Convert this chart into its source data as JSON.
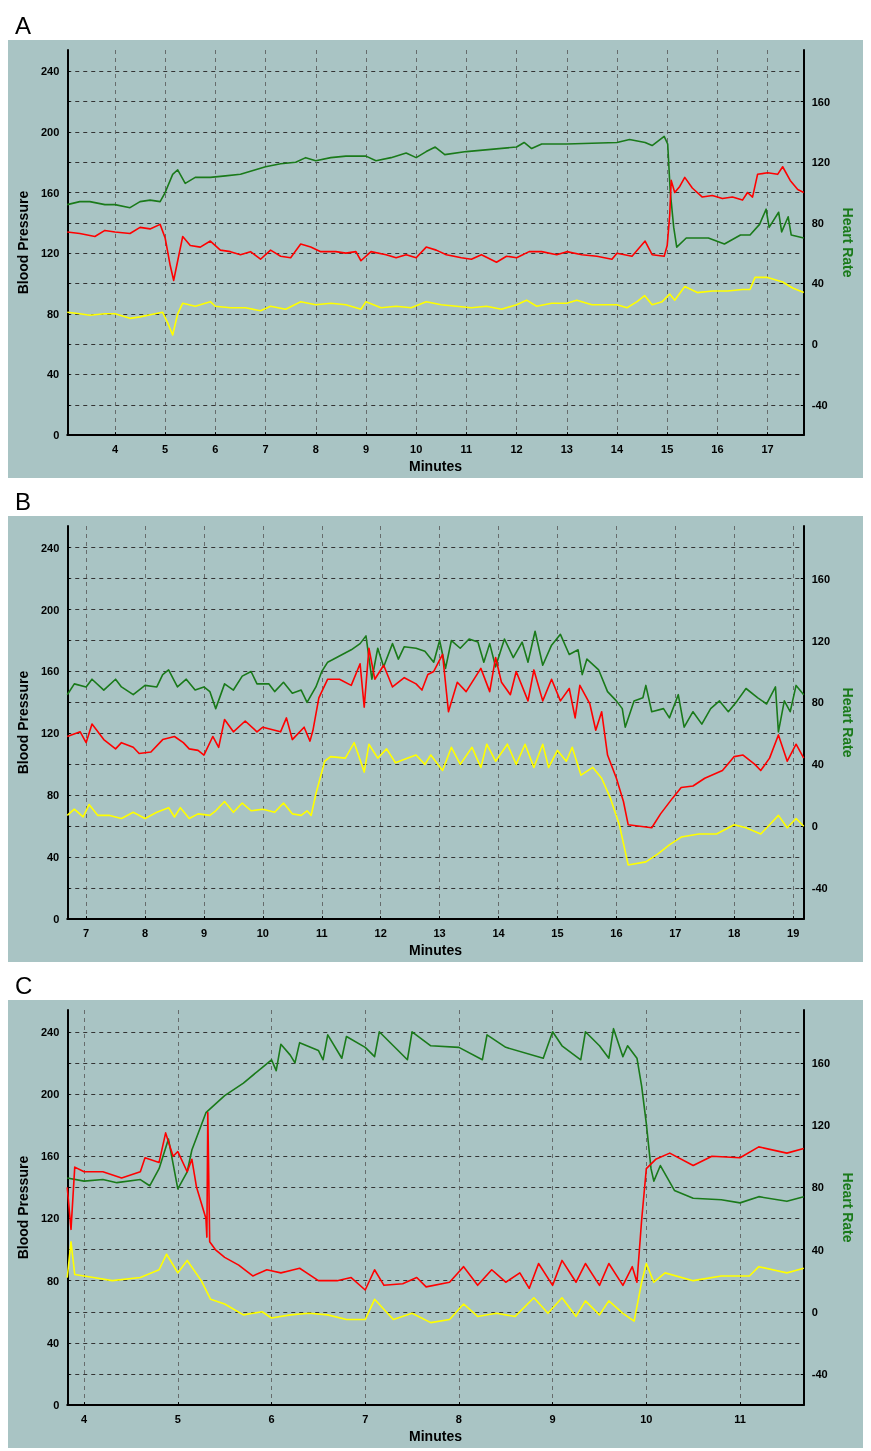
{
  "chart_data": [
    {
      "type": "line",
      "title": "A",
      "xlabel": "Minutes",
      "ylabel": "Blood Pressure",
      "y2label": "Heart Rate",
      "xlim": [
        3.05,
        17.72
      ],
      "xticks": [
        4,
        5,
        6,
        7,
        8,
        9,
        10,
        11,
        12,
        13,
        14,
        15,
        16,
        17
      ],
      "ylim": [
        0,
        254
      ],
      "yticks": [
        0,
        {
          "value": 20,
          "label": null
        },
        40,
        {
          "value": 60,
          "label": null
        },
        80,
        {
          "value": 100,
          "label": null
        },
        120,
        {
          "value": 140,
          "label": null
        },
        160,
        {
          "value": 180,
          "label": null
        },
        200,
        {
          "value": 220,
          "label": null
        },
        240
      ],
      "y2lim": [
        -60,
        194
      ],
      "y2ticks": [
        -40,
        0,
        40,
        80,
        120,
        160
      ],
      "grid": true,
      "series": [
        {
          "color": "#1a7a1a",
          "axis": "y2",
          "x": [
            3.05,
            3.3,
            3.5,
            3.8,
            4.0,
            4.3,
            4.5,
            4.7,
            4.9,
            5.0,
            5.15,
            5.25,
            5.4,
            5.6,
            5.9,
            6.2,
            6.5,
            6.8,
            7.0,
            7.3,
            7.6,
            7.8,
            8.0,
            8.3,
            8.6,
            9.0,
            9.2,
            9.5,
            9.8,
            10.0,
            10.2,
            10.38,
            10.57,
            11,
            12,
            12.15,
            12.3,
            12.5,
            13,
            14,
            14.25,
            14.56,
            14.7,
            14.94,
            15.01,
            15.06,
            15.13,
            15.19,
            15.38,
            15.82,
            16.14,
            16.46,
            16.65,
            16.84,
            16.97,
            17.03,
            17.22,
            17.28,
            17.41,
            17.47,
            17.72
          ],
          "values": [
            92,
            94,
            94,
            92,
            92,
            90,
            94,
            95,
            94,
            100,
            112,
            115,
            106,
            110,
            110,
            111,
            112,
            115,
            117,
            119,
            120,
            123,
            121,
            123,
            124,
            124,
            121,
            123,
            126,
            123,
            127,
            130,
            125,
            127,
            130,
            133,
            129,
            132,
            132,
            133,
            135,
            133,
            131,
            137,
            132,
            101,
            77,
            64,
            70,
            70,
            66,
            72,
            72,
            79,
            89,
            77,
            87,
            74,
            84,
            72,
            70
          ]
        },
        {
          "color": "#ff0000",
          "x": [
            3.05,
            3.3,
            3.6,
            3.8,
            4.0,
            4.3,
            4.5,
            4.7,
            4.9,
            5.0,
            5.1,
            5.17,
            5.25,
            5.35,
            5.5,
            5.7,
            5.9,
            6.1,
            6.3,
            6.5,
            6.7,
            6.9,
            7.1,
            7.3,
            7.5,
            7.7,
            7.9,
            8.1,
            8.4,
            8.6,
            8.8,
            8.9,
            9.1,
            9.4,
            9.6,
            9.8,
            10.0,
            10.2,
            10.4,
            10.6,
            10.9,
            11.1,
            11.3,
            11.6,
            11.8,
            12.0,
            12.25,
            12.5,
            12.8,
            13.0,
            13.3,
            13.6,
            13.9,
            14.0,
            14.3,
            14.56,
            14.7,
            14.94,
            15.0,
            15.05,
            15.08,
            15.15,
            15.25,
            15.35,
            15.5,
            15.7,
            15.9,
            16.1,
            16.3,
            16.5,
            16.6,
            16.7,
            16.8,
            17.0,
            17.2,
            17.3,
            17.45,
            17.6,
            17.72
          ],
          "values": [
            134,
            133,
            131,
            135,
            134,
            133,
            137,
            136,
            139,
            130,
            112,
            102,
            115,
            131,
            125,
            124,
            128,
            122,
            121,
            119,
            121,
            116,
            122,
            118,
            117,
            126,
            124,
            121,
            121,
            120,
            121,
            115,
            121,
            119,
            117,
            119,
            117,
            124,
            122,
            119,
            117,
            116,
            119,
            114,
            118,
            117,
            121,
            121,
            119,
            121,
            119,
            118,
            116,
            120,
            118,
            128,
            119,
            118,
            125,
            145,
            168,
            160,
            164,
            170,
            163,
            157,
            158,
            156,
            157,
            155,
            160,
            157,
            172,
            173,
            172,
            177,
            168,
            162,
            160
          ]
        },
        {
          "color": "#ffff00",
          "x": [
            3.05,
            3.3,
            3.5,
            3.8,
            4.0,
            4.3,
            4.5,
            4.8,
            4.95,
            5.05,
            5.15,
            5.25,
            5.35,
            5.6,
            5.9,
            6.0,
            6.3,
            6.6,
            6.9,
            7.1,
            7.4,
            7.7,
            8.0,
            8.3,
            8.6,
            8.9,
            9.0,
            9.3,
            9.6,
            9.9,
            10.2,
            10.5,
            10.8,
            11.1,
            11.4,
            11.7,
            12.0,
            12.2,
            12.4,
            12.7,
            13.0,
            13.2,
            13.5,
            13.8,
            14.0,
            14.2,
            14.4,
            14.55,
            14.7,
            14.9,
            15.05,
            15.15,
            15.35,
            15.6,
            15.9,
            16.2,
            16.5,
            16.65,
            16.75,
            17.0,
            17.3,
            17.5,
            17.72
          ],
          "values": [
            81,
            80,
            79,
            80,
            80,
            77,
            78,
            80,
            81,
            74,
            66,
            80,
            87,
            85,
            88,
            85,
            84,
            84,
            82,
            85,
            83,
            88,
            86,
            87,
            86,
            83,
            88,
            84,
            85,
            84,
            88,
            86,
            85,
            84,
            85,
            83,
            86,
            89,
            85,
            87,
            87,
            89,
            86,
            86,
            86,
            84,
            88,
            92,
            86,
            88,
            93,
            89,
            98,
            94,
            95,
            95,
            96,
            96,
            104,
            104,
            101,
            97,
            94
          ]
        }
      ]
    },
    {
      "type": "line",
      "title": "B",
      "xlabel": "Minutes",
      "ylabel": "Blood Pressure",
      "y2label": "Heart Rate",
      "xlim": [
        6.68,
        19.18
      ],
      "xticks": [
        7,
        8,
        9,
        10,
        11,
        12,
        13,
        14,
        15,
        16,
        17,
        18,
        19
      ],
      "ylim": [
        0,
        254
      ],
      "yticks": [
        0,
        {
          "value": 20,
          "label": null
        },
        40,
        {
          "value": 60,
          "label": null
        },
        80,
        {
          "value": 100,
          "label": null
        },
        120,
        {
          "value": 140,
          "label": null
        },
        160,
        {
          "value": 180,
          "label": null
        },
        200,
        {
          "value": 220,
          "label": null
        },
        240
      ],
      "y2lim": [
        -60,
        194
      ],
      "y2ticks": [
        -40,
        0,
        40,
        80,
        120,
        160
      ],
      "grid": true,
      "series": [
        {
          "color": "#1a7a1a",
          "axis": "y2",
          "x": [
            6.68,
            6.8,
            7.0,
            7.1,
            7.3,
            7.5,
            7.6,
            7.8,
            8.0,
            8.2,
            8.3,
            8.4,
            8.55,
            8.7,
            8.85,
            9.0,
            9.1,
            9.2,
            9.35,
            9.5,
            9.65,
            9.8,
            9.9,
            10.1,
            10.2,
            10.35,
            10.5,
            10.65,
            10.75,
            10.9,
            11.0,
            11.1,
            11.3,
            11.5,
            11.65,
            11.75,
            11.85,
            11.95,
            12.05,
            12.2,
            12.3,
            12.4,
            12.6,
            12.75,
            12.9,
            13.0,
            13.1,
            13.2,
            13.35,
            13.5,
            13.65,
            13.75,
            13.85,
            13.95,
            14.1,
            14.25,
            14.4,
            14.5,
            14.62,
            14.75,
            14.9,
            15.05,
            15.2,
            15.35,
            15.42,
            15.5,
            15.7,
            15.85,
            16.0,
            16.1,
            16.15,
            16.3,
            16.45,
            16.5,
            16.6,
            16.8,
            16.9,
            17.05,
            17.15,
            17.3,
            17.45,
            17.6,
            17.75,
            17.9,
            18.05,
            18.2,
            18.4,
            18.55,
            18.7,
            18.75,
            18.85,
            18.95,
            19.05,
            19.18
          ],
          "values": [
            85,
            92,
            90,
            95,
            88,
            95,
            90,
            85,
            91,
            90,
            98,
            101,
            90,
            95,
            88,
            90,
            87,
            76,
            92,
            88,
            97,
            100,
            92,
            92,
            87,
            93,
            86,
            88,
            80,
            90,
            100,
            106,
            110,
            114,
            118,
            123,
            95,
            115,
            103,
            118,
            108,
            116,
            115,
            113,
            106,
            120,
            102,
            120,
            115,
            121,
            119,
            106,
            118,
            103,
            121,
            109,
            119,
            106,
            126,
            104,
            117,
            124,
            111,
            114,
            98,
            108,
            101,
            87,
            81,
            76,
            64,
            81,
            83,
            91,
            74,
            76,
            70,
            85,
            64,
            74,
            66,
            76,
            81,
            74,
            81,
            89,
            83,
            79,
            90,
            61,
            81,
            74,
            91,
            85
          ]
        },
        {
          "color": "#ff0000",
          "x": [
            6.68,
            6.9,
            7.0,
            7.1,
            7.3,
            7.5,
            7.6,
            7.8,
            7.9,
            8.1,
            8.3,
            8.5,
            8.65,
            8.75,
            8.9,
            9.0,
            9.15,
            9.25,
            9.35,
            9.5,
            9.7,
            9.9,
            10.0,
            10.3,
            10.4,
            10.5,
            10.7,
            10.8,
            10.85,
            10.95,
            11.1,
            11.3,
            11.5,
            11.65,
            11.72,
            11.8,
            11.9,
            12.05,
            12.2,
            12.4,
            12.6,
            12.7,
            12.8,
            12.9,
            13.05,
            13.15,
            13.3,
            13.45,
            13.6,
            13.7,
            13.85,
            13.95,
            14.05,
            14.2,
            14.3,
            14.5,
            14.6,
            14.75,
            14.9,
            15.05,
            15.2,
            15.3,
            15.38,
            15.55,
            15.65,
            15.75,
            15.85,
            16.0,
            16.12,
            16.2,
            16.4,
            16.6,
            16.75,
            16.95,
            17.1,
            17.3,
            17.5,
            17.8,
            18.0,
            18.15,
            18.35,
            18.45,
            18.6,
            18.75,
            18.9,
            19.05,
            19.18
          ],
          "values": [
            118,
            121,
            114,
            126,
            116,
            110,
            114,
            111,
            107,
            108,
            116,
            118,
            114,
            110,
            109,
            106,
            118,
            111,
            129,
            121,
            128,
            121,
            124,
            121,
            130,
            116,
            124,
            115,
            122,
            143,
            155,
            155,
            151,
            165,
            137,
            175,
            155,
            164,
            150,
            156,
            152,
            148,
            158,
            160,
            171,
            134,
            153,
            147,
            156,
            162,
            147,
            169,
            153,
            145,
            160,
            141,
            161,
            141,
            155,
            141,
            149,
            130,
            151,
            139,
            122,
            134,
            106,
            91,
            76,
            61,
            60,
            59,
            68,
            78,
            85,
            86,
            91,
            96,
            105,
            106,
            100,
            96,
            104,
            119,
            102,
            113,
            104
          ]
        },
        {
          "color": "#ffff00",
          "x": [
            6.68,
            6.8,
            6.95,
            7.05,
            7.2,
            7.4,
            7.6,
            7.8,
            8.0,
            8.2,
            8.4,
            8.5,
            8.6,
            8.75,
            8.9,
            9.1,
            9.2,
            9.35,
            9.5,
            9.65,
            9.8,
            10.0,
            10.2,
            10.35,
            10.5,
            10.65,
            10.75,
            10.82,
            10.9,
            11.05,
            11.15,
            11.4,
            11.55,
            11.65,
            11.72,
            11.8,
            11.95,
            12.1,
            12.25,
            12.45,
            12.6,
            12.75,
            12.85,
            13.05,
            13.2,
            13.35,
            13.55,
            13.7,
            13.8,
            13.95,
            14.15,
            14.3,
            14.45,
            14.6,
            14.75,
            14.85,
            15.0,
            15.15,
            15.25,
            15.4,
            15.6,
            15.75,
            15.9,
            16.05,
            16.2,
            16.5,
            16.7,
            16.9,
            17.1,
            17.4,
            17.7,
            18.0,
            18.2,
            18.45,
            18.6,
            18.75,
            18.9,
            19.05,
            19.18
          ],
          "values": [
            67,
            71,
            66,
            74,
            67,
            67,
            65,
            69,
            65,
            69,
            72,
            66,
            72,
            65,
            68,
            67,
            70,
            76,
            69,
            75,
            70,
            71,
            69,
            75,
            68,
            67,
            70,
            67,
            81,
            102,
            105,
            104,
            114,
            103,
            95,
            113,
            104,
            110,
            101,
            104,
            106,
            100,
            106,
            96,
            111,
            100,
            111,
            98,
            113,
            102,
            113,
            100,
            113,
            98,
            113,
            98,
            109,
            102,
            111,
            93,
            98,
            91,
            78,
            61,
            35,
            37,
            42,
            48,
            53,
            55,
            55,
            61,
            59,
            55,
            61,
            67,
            59,
            65,
            60
          ]
        }
      ]
    },
    {
      "type": "line",
      "title": "C",
      "xlabel": "Minutes",
      "ylabel": "Blood Pressure",
      "y2label": "Heart Rate",
      "xlim": [
        3.82,
        11.68
      ],
      "xticks": [
        4,
        5,
        6,
        7,
        8,
        9,
        10,
        11
      ],
      "ylim": [
        0,
        254
      ],
      "yticks": [
        0,
        {
          "value": 20,
          "label": null
        },
        40,
        {
          "value": 60,
          "label": null
        },
        80,
        {
          "value": 100,
          "label": null
        },
        120,
        {
          "value": 140,
          "label": null
        },
        160,
        {
          "value": 180,
          "label": null
        },
        200,
        {
          "value": 220,
          "label": null
        },
        240
      ],
      "y2lim": [
        -60,
        194
      ],
      "y2ticks": [
        -40,
        0,
        40,
        80,
        120,
        160
      ],
      "grid": true,
      "series": [
        {
          "color": "#1a7a1a",
          "axis": "y2",
          "x": [
            3.82,
            4.0,
            4.2,
            4.35,
            4.6,
            4.7,
            4.8,
            4.9,
            5.0,
            5.1,
            5.15,
            5.3,
            5.5,
            5.7,
            5.9,
            6.0,
            6.05,
            6.1,
            6.2,
            6.25,
            6.3,
            6.5,
            6.55,
            6.6,
            6.75,
            6.8,
            7.0,
            7.1,
            7.15,
            7.3,
            7.45,
            7.5,
            7.7,
            8.0,
            8.25,
            8.3,
            8.5,
            8.9,
            9.0,
            9.1,
            9.3,
            9.35,
            9.5,
            9.6,
            9.65,
            9.75,
            9.8,
            9.9,
            9.95,
            10.0,
            10.05,
            10.08,
            10.15,
            10.3,
            10.5,
            10.8,
            11.0,
            11.2,
            11.5,
            11.68
          ],
          "values": [
            86,
            84,
            85,
            83,
            85,
            81,
            92,
            111,
            79,
            90,
            104,
            128,
            139,
            147,
            157,
            162,
            155,
            172,
            165,
            160,
            173,
            168,
            162,
            178,
            163,
            177,
            170,
            164,
            180,
            171,
            162,
            180,
            171,
            170,
            162,
            178,
            170,
            163,
            180,
            171,
            162,
            180,
            171,
            163,
            182,
            164,
            171,
            163,
            145,
            121,
            92,
            84,
            94,
            78,
            73,
            72,
            70,
            74,
            71,
            74
          ]
        },
        {
          "color": "#ff0000",
          "x": [
            3.82,
            3.86,
            3.9,
            4.0,
            4.2,
            4.4,
            4.6,
            4.65,
            4.8,
            4.87,
            4.95,
            5.0,
            5.1,
            5.15,
            5.2,
            5.3,
            5.31,
            5.32,
            5.34,
            5.4,
            5.5,
            5.65,
            5.8,
            5.95,
            6.1,
            6.3,
            6.5,
            6.7,
            6.85,
            7.0,
            7.1,
            7.2,
            7.4,
            7.55,
            7.65,
            7.9,
            8.05,
            8.2,
            8.35,
            8.5,
            8.65,
            8.75,
            8.85,
            9.0,
            9.1,
            9.25,
            9.35,
            9.5,
            9.6,
            9.75,
            9.85,
            9.9,
            9.95,
            10.0,
            10.1,
            10.25,
            10.5,
            10.7,
            11.0,
            11.2,
            11.5,
            11.68
          ],
          "values": [
            140,
            113,
            153,
            150,
            150,
            146,
            150,
            159,
            156,
            175,
            160,
            163,
            150,
            158,
            140,
            120,
            108,
            188,
            105,
            100,
            95,
            90,
            83,
            87,
            85,
            88,
            80,
            80,
            82,
            74,
            87,
            77,
            78,
            82,
            76,
            79,
            89,
            77,
            87,
            79,
            85,
            75,
            91,
            77,
            93,
            79,
            91,
            77,
            91,
            77,
            89,
            79,
            119,
            152,
            158,
            162,
            154,
            160,
            159,
            166,
            162,
            165
          ]
        },
        {
          "color": "#ffff00",
          "x": [
            3.82,
            3.86,
            3.9,
            4.1,
            4.3,
            4.6,
            4.8,
            4.88,
            5.0,
            5.1,
            5.25,
            5.35,
            5.5,
            5.7,
            5.9,
            6.0,
            6.2,
            6.4,
            6.6,
            6.8,
            7.0,
            7.1,
            7.3,
            7.5,
            7.7,
            7.9,
            8.05,
            8.2,
            8.4,
            8.6,
            8.8,
            8.95,
            9.1,
            9.25,
            9.35,
            9.5,
            9.6,
            9.75,
            9.87,
            9.95,
            10.0,
            10.08,
            10.2,
            10.5,
            10.8,
            11.1,
            11.2,
            11.5,
            11.68
          ],
          "values": [
            82,
            105,
            84,
            82,
            80,
            82,
            87,
            97,
            85,
            93,
            80,
            68,
            65,
            58,
            60,
            56,
            58,
            59,
            58,
            55,
            55,
            68,
            55,
            59,
            53,
            55,
            65,
            57,
            59,
            57,
            69,
            59,
            69,
            57,
            67,
            58,
            67,
            59,
            54,
            79,
            91,
            79,
            85,
            80,
            83,
            83,
            89,
            85,
            88
          ]
        }
      ]
    }
  ]
}
